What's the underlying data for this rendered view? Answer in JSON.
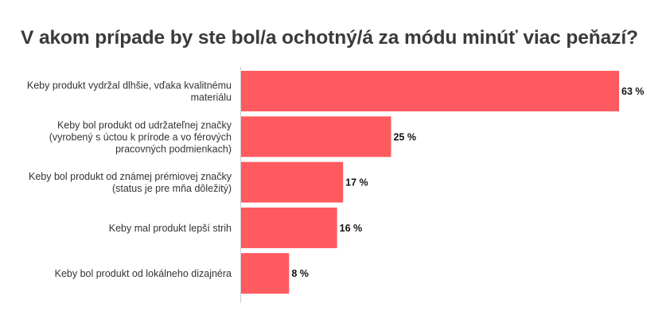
{
  "chart_data": {
    "type": "bar",
    "orientation": "horizontal",
    "title": "V akom prípade by ste bol/a ochotný/á za módu minúť viac peňazí?",
    "categories": [
      [
        "Keby produkt vydržal dlhšie, vďaka kvalitnému",
        "materiálu"
      ],
      [
        "Keby bol produkt od udržateľnej značky",
        "(vyrobený s úctou k prírode a vo férových",
        "pracovných podmienkach)"
      ],
      [
        "Keby bol produkt od známej prémiovej značky",
        "(status je pre mňa dôležitý)"
      ],
      [
        "Keby mal produkt lepší strih"
      ],
      [
        "Keby bol produkt od lokálneho dizajnéra"
      ]
    ],
    "values": [
      63,
      25,
      17,
      16,
      8
    ],
    "value_labels": [
      "63 %",
      "25 %",
      "17 %",
      "16 %",
      "8 %"
    ],
    "xlim": [
      0,
      63
    ],
    "bar_color": "#ff5a5f",
    "axis_color": "#cccccc",
    "grid": false,
    "legend": "none"
  }
}
